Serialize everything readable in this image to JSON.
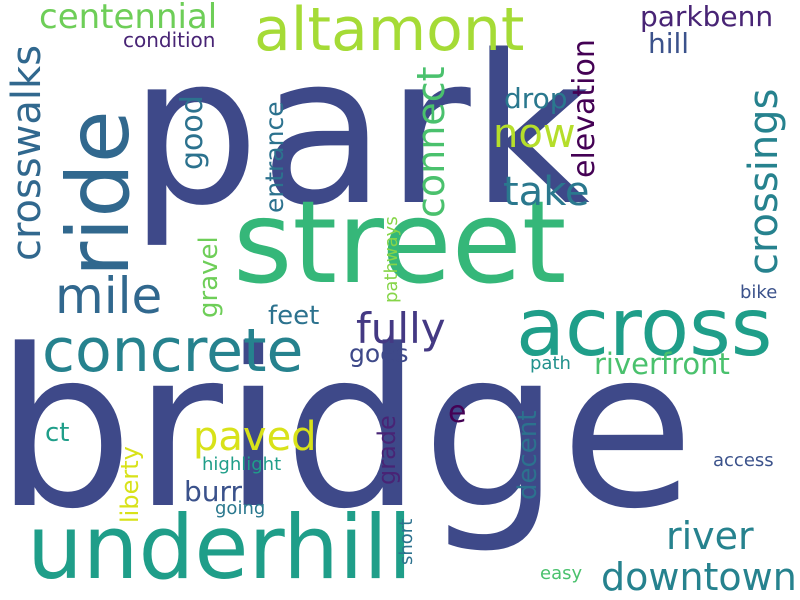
{
  "words": [
    {
      "text": "park",
      "color": "#3e4989",
      "orient": "h"
    },
    {
      "text": "bridge",
      "color": "#3e4989",
      "orient": "h"
    },
    {
      "text": "street",
      "color": "#35b779",
      "orient": "h"
    },
    {
      "text": "underhill",
      "color": "#1f9e89",
      "orient": "h"
    },
    {
      "text": "ride",
      "color": "#31688e",
      "orient": "v"
    },
    {
      "text": "across",
      "color": "#1f9e89",
      "orient": "h"
    },
    {
      "text": "concrete",
      "color": "#26828e",
      "orient": "h"
    },
    {
      "text": "altamont",
      "color": "#a5db36",
      "orient": "h"
    },
    {
      "text": "mile",
      "color": "#31688e",
      "orient": "h"
    },
    {
      "text": "crosswalks",
      "color": "#31688e",
      "orient": "v"
    },
    {
      "text": "crossings",
      "color": "#26828e",
      "orient": "v"
    },
    {
      "text": "fully",
      "color": "#443983",
      "orient": "h"
    },
    {
      "text": "downtown",
      "color": "#26828e",
      "orient": "h"
    },
    {
      "text": "river",
      "color": "#26828e",
      "orient": "h"
    },
    {
      "text": "paved",
      "color": "#d8e219",
      "orient": "h"
    },
    {
      "text": "centennial",
      "color": "#6ece58",
      "orient": "h"
    },
    {
      "text": "now",
      "color": "#b5de2b",
      "orient": "h"
    },
    {
      "text": "take",
      "color": "#2a788e",
      "orient": "h"
    },
    {
      "text": "connect",
      "color": "#4ac16d",
      "orient": "v"
    },
    {
      "text": "parkbenn",
      "color": "#482475",
      "orient": "h"
    },
    {
      "text": "hill",
      "color": "#3b528b",
      "orient": "h"
    },
    {
      "text": "drop",
      "color": "#2a788e",
      "orient": "h"
    },
    {
      "text": "elevation",
      "color": "#440154",
      "orient": "v"
    },
    {
      "text": "riverfront",
      "color": "#4ac16d",
      "orient": "h"
    },
    {
      "text": "good",
      "color": "#2c728e",
      "orient": "v"
    },
    {
      "text": "entrance",
      "color": "#2c728e",
      "orient": "v"
    },
    {
      "text": "gravel",
      "color": "#6ece58",
      "orient": "v"
    },
    {
      "text": "feet",
      "color": "#2c728e",
      "orient": "h"
    },
    {
      "text": "goes",
      "color": "#3e4989",
      "orient": "h"
    },
    {
      "text": "condition",
      "color": "#482475",
      "orient": "h"
    },
    {
      "text": "pathways",
      "color": "#86d549",
      "orient": "v"
    },
    {
      "text": "grade",
      "color": "#482475",
      "orient": "v"
    },
    {
      "text": "liberty",
      "color": "#d8e219",
      "orient": "v"
    },
    {
      "text": "burr",
      "color": "#3b528b",
      "orient": "h"
    },
    {
      "text": "highlight",
      "color": "#1f9e89",
      "orient": "h"
    },
    {
      "text": "decent",
      "color": "#2c728e",
      "orient": "v"
    },
    {
      "text": "ct",
      "color": "#1f9e89",
      "orient": "h"
    },
    {
      "text": "e",
      "color": "#440154",
      "orient": "h"
    },
    {
      "text": "path",
      "color": "#21918c",
      "orient": "h"
    },
    {
      "text": "bike",
      "color": "#3b528b",
      "orient": "h"
    },
    {
      "text": "access",
      "color": "#3b528b",
      "orient": "h"
    },
    {
      "text": "going",
      "color": "#2a788e",
      "orient": "h"
    },
    {
      "text": "short",
      "color": "#2c728e",
      "orient": "v"
    },
    {
      "text": "easy",
      "color": "#4ac16d",
      "orient": "h"
    }
  ]
}
